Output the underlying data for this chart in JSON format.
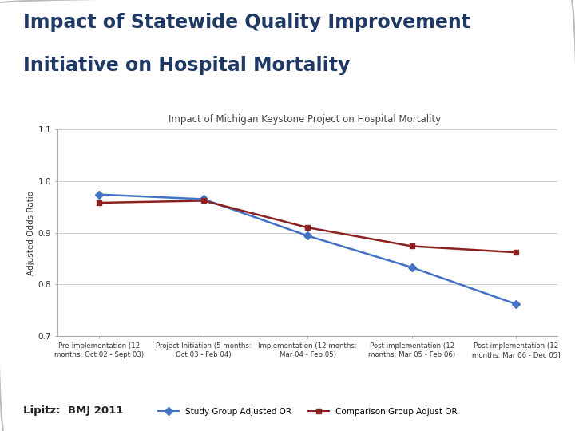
{
  "main_title_line1": "Impact of Statewide Quality Improvement",
  "main_title_line2": "Initiative on Hospital Mortality",
  "chart_subtitle": "Impact of Michigan Keystone Project on Hospital Mortality",
  "xlabel_categories": [
    "Pre-implementation (12\nmonths: Oct 02 - Sept 03)",
    "Project Initiation (5 months:\nOct 03 - Feb 04)",
    "Implementation (12 months:\nMar 04 - Feb 05)",
    "Post implementation (12\nmonths: Mar 05 - Feb 06)",
    "Post implementation (12\nmonths: Mar 06 - Dec 05]"
  ],
  "study_group": [
    0.974,
    0.965,
    0.894,
    0.833,
    0.762
  ],
  "comparison_group": [
    0.958,
    0.962,
    0.91,
    0.874,
    0.862
  ],
  "ylabel": "Adjusted Odds Ratio",
  "ylim": [
    0.7,
    1.1
  ],
  "yticks": [
    0.7,
    0.8,
    0.9,
    1.0,
    1.1
  ],
  "study_color": "#4472C4",
  "comparison_color": "#8B2020",
  "background_color": "#FFFFFF",
  "main_title_color": "#1F3864",
  "legend_study": "Study Group Adjusted OR",
  "legend_comparison": "Comparison Group Adjust OR",
  "footer_text": "Lipitz:  BMJ 2011"
}
